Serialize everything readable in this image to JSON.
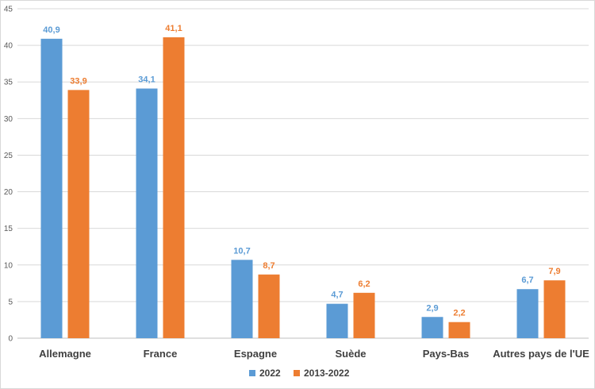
{
  "chart_data": {
    "type": "bar",
    "categories": [
      "Allemagne",
      "France",
      "Espagne",
      "Suède",
      "Pays-Bas",
      "Autres pays de l'UE"
    ],
    "series": [
      {
        "name": "2022",
        "values": [
          40.9,
          34.1,
          10.7,
          4.7,
          2.9,
          6.7
        ],
        "labels": [
          "40,9",
          "34,1",
          "10,7",
          "4,7",
          "2,9",
          "6,7"
        ],
        "color": "#5b9bd5"
      },
      {
        "name": "2013-2022",
        "values": [
          33.9,
          41.1,
          8.7,
          6.2,
          2.2,
          7.9
        ],
        "labels": [
          "33,9",
          "41,1",
          "8,7",
          "6,2",
          "2,2",
          "7,9"
        ],
        "color": "#ed7d31"
      }
    ],
    "ylim": [
      0,
      45
    ],
    "yticks": [
      0,
      5,
      10,
      15,
      20,
      25,
      30,
      35,
      40,
      45
    ],
    "grid": true,
    "legend_position": "bottom",
    "title": "",
    "xlabel": "",
    "ylabel": ""
  }
}
